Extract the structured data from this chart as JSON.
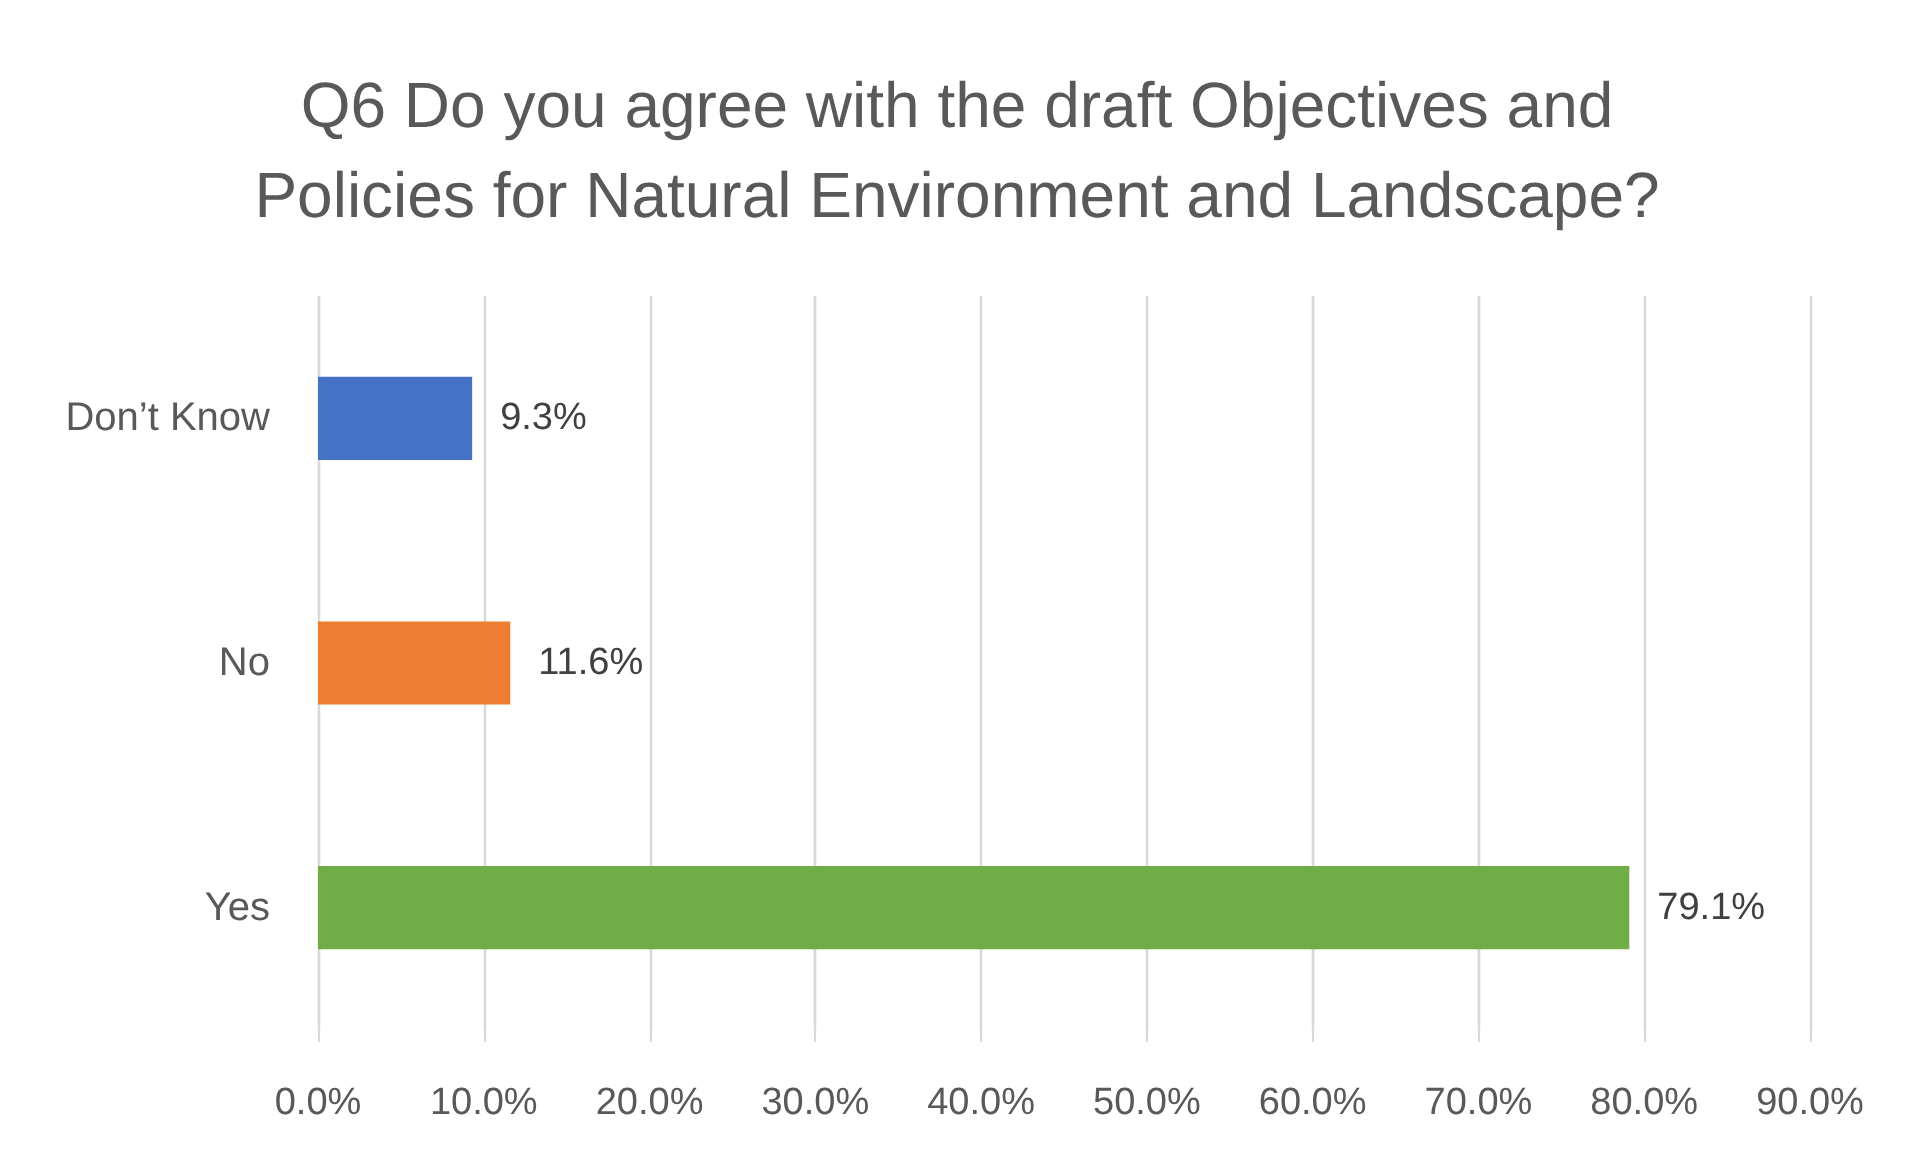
{
  "chart_data": {
    "type": "bar",
    "orientation": "horizontal",
    "title": "Q6 Do you agree with the draft Objectives and\nPolicies for Natural Environment and Landscape?",
    "categories": [
      "Don’t Know",
      "No",
      "Yes"
    ],
    "values": [
      9.3,
      11.6,
      79.1
    ],
    "colors": [
      "#4472c4",
      "#ed7d31",
      "#70ad47"
    ],
    "value_labels": [
      "9.3%",
      "11.6%",
      "79.1%"
    ],
    "xlim": [
      0,
      90
    ],
    "xticks": [
      {
        "value": 0,
        "label": "0.0%"
      },
      {
        "value": 10,
        "label": "10.0%"
      },
      {
        "value": 20,
        "label": "20.0%"
      },
      {
        "value": 30,
        "label": "30.0%"
      },
      {
        "value": 40,
        "label": "40.0%"
      },
      {
        "value": 50,
        "label": "50.0%"
      },
      {
        "value": 60,
        "label": "60.0%"
      },
      {
        "value": 70,
        "label": "70.0%"
      },
      {
        "value": 80,
        "label": "80.0%"
      },
      {
        "value": 90,
        "label": "90.0%"
      }
    ],
    "grid": "x"
  }
}
